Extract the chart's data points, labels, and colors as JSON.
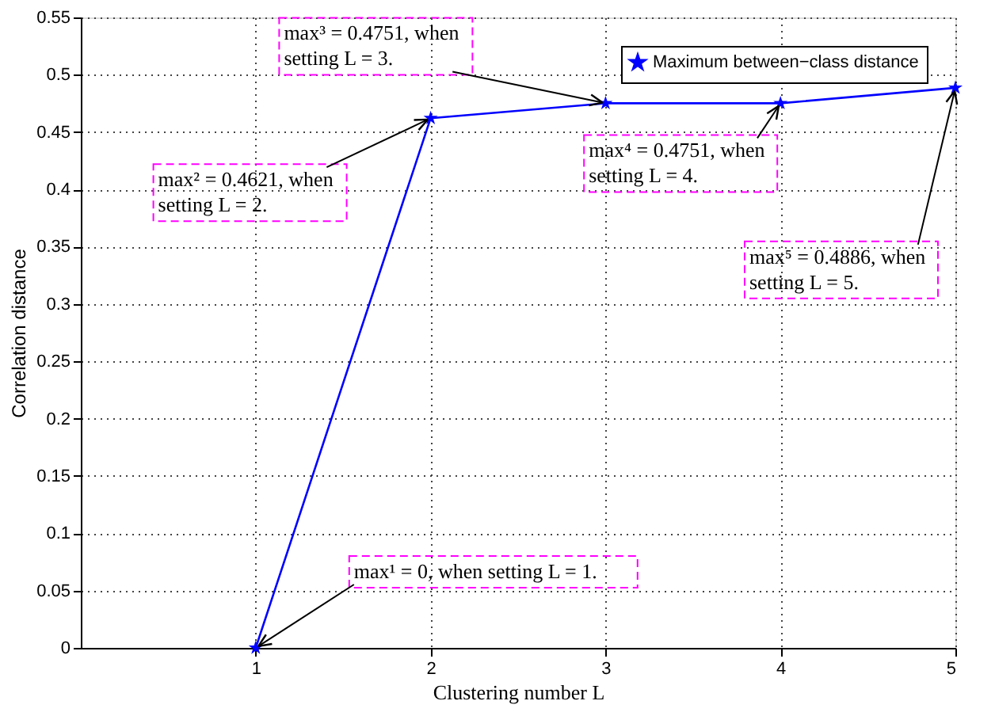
{
  "chart_data": {
    "type": "line",
    "xlabel": "Clustering number L",
    "ylabel": "Correlation distance",
    "x": [
      1,
      2,
      3,
      4,
      5
    ],
    "series": [
      {
        "name": "Maximum between−class distance",
        "color": "#0000ff",
        "values": [
          0,
          0.4621,
          0.4751,
          0.4751,
          0.4886
        ]
      }
    ],
    "xlim": [
      0,
      5
    ],
    "xticks": [
      1,
      2,
      3,
      4,
      5
    ],
    "ylim": [
      0,
      0.55
    ],
    "yticks": [
      0,
      0.05,
      0.1,
      0.15,
      0.2,
      0.25,
      0.3,
      0.35,
      0.4,
      0.45,
      0.5,
      0.55
    ],
    "grid": true,
    "legend": "top right",
    "marker": "star",
    "line_style": "solid",
    "annotations": [
      {
        "text": "max¹ = 0, when setting L = 1.",
        "x": 1,
        "y": 0
      },
      {
        "text": "max² = 0.4621, when\nsetting L = 2.",
        "x": 2,
        "y": 0.4621
      },
      {
        "text": "max³ = 0.4751, when\nsetting L = 3.",
        "x": 3,
        "y": 0.4751
      },
      {
        "text": "max⁴ = 0.4751, when\nsetting L = 4.",
        "x": 4,
        "y": 0.4751
      },
      {
        "text": "max⁵ = 0.4886, when\nsetting L = 5.",
        "x": 5,
        "y": 0.4886
      }
    ]
  }
}
